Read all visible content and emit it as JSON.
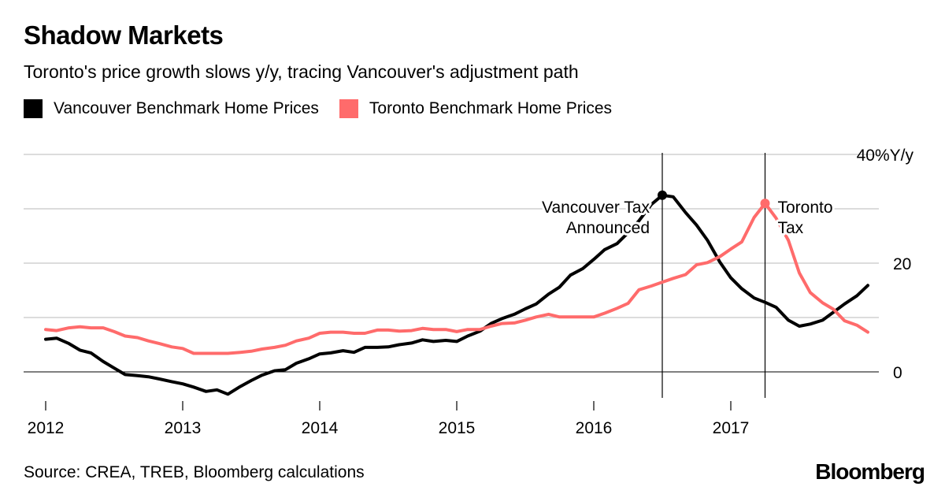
{
  "header": {
    "title": "Shadow Markets",
    "subtitle": "Toronto's price growth slows y/y, tracing Vancouver's adjustment path"
  },
  "footer": {
    "source": "Source: CREA, TREB, Bloomberg calculations",
    "brand": "Bloomberg"
  },
  "colors": {
    "vancouver": "#000000",
    "toronto": "#ff6b6b",
    "grid": "#d0d0d0"
  },
  "chart_data": {
    "type": "line",
    "title": "Shadow Markets",
    "subtitle": "Toronto's price growth slows y/y, tracing Vancouver's adjustment path",
    "xlabel": "",
    "ylabel": "Y/y",
    "unit_label": "40%Y/y",
    "xlim": [
      2012.0,
      2017.9
    ],
    "ylim": [
      -5,
      40
    ],
    "x_ticks": [
      2012,
      2013,
      2014,
      2015,
      2016,
      2017
    ],
    "y_ticks": [
      0,
      20
    ],
    "grid": true,
    "legend_position": "top",
    "series": [
      {
        "name": "Vancouver Benchmark Home Prices",
        "color": "#000000",
        "points": [
          [
            2012.0,
            6.0
          ],
          [
            2012.08,
            6.2
          ],
          [
            2012.17,
            5.2
          ],
          [
            2012.25,
            4.0
          ],
          [
            2012.33,
            3.5
          ],
          [
            2012.42,
            1.9
          ],
          [
            2012.5,
            0.7
          ],
          [
            2012.58,
            -0.5
          ],
          [
            2012.67,
            -0.7
          ],
          [
            2012.75,
            -0.9
          ],
          [
            2012.83,
            -1.3
          ],
          [
            2012.92,
            -1.8
          ],
          [
            2013.0,
            -2.2
          ],
          [
            2013.08,
            -2.8
          ],
          [
            2013.17,
            -3.6
          ],
          [
            2013.25,
            -3.3
          ],
          [
            2013.33,
            -4.1
          ],
          [
            2013.42,
            -2.7
          ],
          [
            2013.5,
            -1.6
          ],
          [
            2013.58,
            -0.6
          ],
          [
            2013.67,
            0.2
          ],
          [
            2013.75,
            0.4
          ],
          [
            2013.83,
            1.6
          ],
          [
            2013.92,
            2.4
          ],
          [
            2014.0,
            3.3
          ],
          [
            2014.08,
            3.5
          ],
          [
            2014.17,
            3.9
          ],
          [
            2014.25,
            3.6
          ],
          [
            2014.33,
            4.5
          ],
          [
            2014.42,
            4.5
          ],
          [
            2014.5,
            4.6
          ],
          [
            2014.58,
            5.0
          ],
          [
            2014.67,
            5.3
          ],
          [
            2014.75,
            5.9
          ],
          [
            2014.83,
            5.6
          ],
          [
            2014.92,
            5.8
          ],
          [
            2015.0,
            5.6
          ],
          [
            2015.08,
            6.6
          ],
          [
            2015.17,
            7.5
          ],
          [
            2015.25,
            8.9
          ],
          [
            2015.33,
            9.8
          ],
          [
            2015.42,
            10.6
          ],
          [
            2015.5,
            11.6
          ],
          [
            2015.58,
            12.5
          ],
          [
            2015.67,
            14.3
          ],
          [
            2015.75,
            15.6
          ],
          [
            2015.83,
            17.8
          ],
          [
            2015.92,
            19.0
          ],
          [
            2016.0,
            20.7
          ],
          [
            2016.08,
            22.5
          ],
          [
            2016.17,
            23.6
          ],
          [
            2016.25,
            25.6
          ],
          [
            2016.33,
            27.8
          ],
          [
            2016.42,
            30.8
          ],
          [
            2016.5,
            32.5
          ],
          [
            2016.58,
            32.2
          ],
          [
            2016.67,
            29.3
          ],
          [
            2016.75,
            27.0
          ],
          [
            2016.83,
            24.2
          ],
          [
            2016.92,
            20.2
          ],
          [
            2017.0,
            17.3
          ],
          [
            2017.08,
            15.3
          ],
          [
            2017.17,
            13.6
          ],
          [
            2017.25,
            12.8
          ],
          [
            2017.33,
            11.9
          ],
          [
            2017.42,
            9.5
          ],
          [
            2017.5,
            8.4
          ],
          [
            2017.58,
            8.8
          ],
          [
            2017.67,
            9.5
          ],
          [
            2017.75,
            11.0
          ],
          [
            2017.83,
            12.5
          ],
          [
            2017.92,
            14.0
          ],
          [
            2018.0,
            15.9
          ]
        ]
      },
      {
        "name": "Toronto Benchmark Home Prices",
        "color": "#ff6b6b",
        "points": [
          [
            2012.0,
            7.8
          ],
          [
            2012.08,
            7.6
          ],
          [
            2012.17,
            8.1
          ],
          [
            2012.25,
            8.3
          ],
          [
            2012.33,
            8.1
          ],
          [
            2012.42,
            8.1
          ],
          [
            2012.5,
            7.4
          ],
          [
            2012.58,
            6.6
          ],
          [
            2012.67,
            6.3
          ],
          [
            2012.75,
            5.7
          ],
          [
            2012.83,
            5.2
          ],
          [
            2012.92,
            4.6
          ],
          [
            2013.0,
            4.3
          ],
          [
            2013.08,
            3.4
          ],
          [
            2013.17,
            3.4
          ],
          [
            2013.25,
            3.4
          ],
          [
            2013.33,
            3.4
          ],
          [
            2013.42,
            3.6
          ],
          [
            2013.5,
            3.8
          ],
          [
            2013.58,
            4.2
          ],
          [
            2013.67,
            4.5
          ],
          [
            2013.75,
            4.9
          ],
          [
            2013.83,
            5.7
          ],
          [
            2013.92,
            6.2
          ],
          [
            2014.0,
            7.1
          ],
          [
            2014.08,
            7.3
          ],
          [
            2014.17,
            7.3
          ],
          [
            2014.25,
            7.1
          ],
          [
            2014.33,
            7.1
          ],
          [
            2014.42,
            7.7
          ],
          [
            2014.5,
            7.7
          ],
          [
            2014.58,
            7.5
          ],
          [
            2014.67,
            7.6
          ],
          [
            2014.75,
            8.0
          ],
          [
            2014.83,
            7.8
          ],
          [
            2014.92,
            7.8
          ],
          [
            2015.0,
            7.4
          ],
          [
            2015.08,
            7.8
          ],
          [
            2015.17,
            7.8
          ],
          [
            2015.25,
            8.4
          ],
          [
            2015.33,
            8.9
          ],
          [
            2015.42,
            9.0
          ],
          [
            2015.5,
            9.5
          ],
          [
            2015.58,
            10.1
          ],
          [
            2015.67,
            10.6
          ],
          [
            2015.75,
            10.1
          ],
          [
            2015.83,
            10.1
          ],
          [
            2015.92,
            10.1
          ],
          [
            2016.0,
            10.1
          ],
          [
            2016.08,
            10.8
          ],
          [
            2016.17,
            11.7
          ],
          [
            2016.25,
            12.6
          ],
          [
            2016.33,
            15.1
          ],
          [
            2016.42,
            15.8
          ],
          [
            2016.5,
            16.5
          ],
          [
            2016.58,
            17.2
          ],
          [
            2016.67,
            17.9
          ],
          [
            2016.75,
            19.7
          ],
          [
            2016.83,
            20.1
          ],
          [
            2016.92,
            21.2
          ],
          [
            2017.0,
            22.6
          ],
          [
            2017.08,
            23.9
          ],
          [
            2017.17,
            28.4
          ],
          [
            2017.25,
            31.0
          ],
          [
            2017.33,
            28.3
          ],
          [
            2017.42,
            24.2
          ],
          [
            2017.5,
            18.2
          ],
          [
            2017.58,
            14.6
          ],
          [
            2017.67,
            12.7
          ],
          [
            2017.75,
            11.5
          ],
          [
            2017.83,
            9.4
          ],
          [
            2017.92,
            8.6
          ],
          [
            2018.0,
            7.3
          ]
        ]
      }
    ],
    "annotations": [
      {
        "id": "van",
        "x": 2016.5,
        "y": 32.5,
        "series": 0,
        "lines": [
          "Vancouver Tax",
          "Announced"
        ],
        "align": "end"
      },
      {
        "id": "tor",
        "x": 2017.25,
        "y": 31.0,
        "series": 1,
        "lines": [
          "Toronto",
          "Tax"
        ],
        "align": "start"
      }
    ]
  }
}
